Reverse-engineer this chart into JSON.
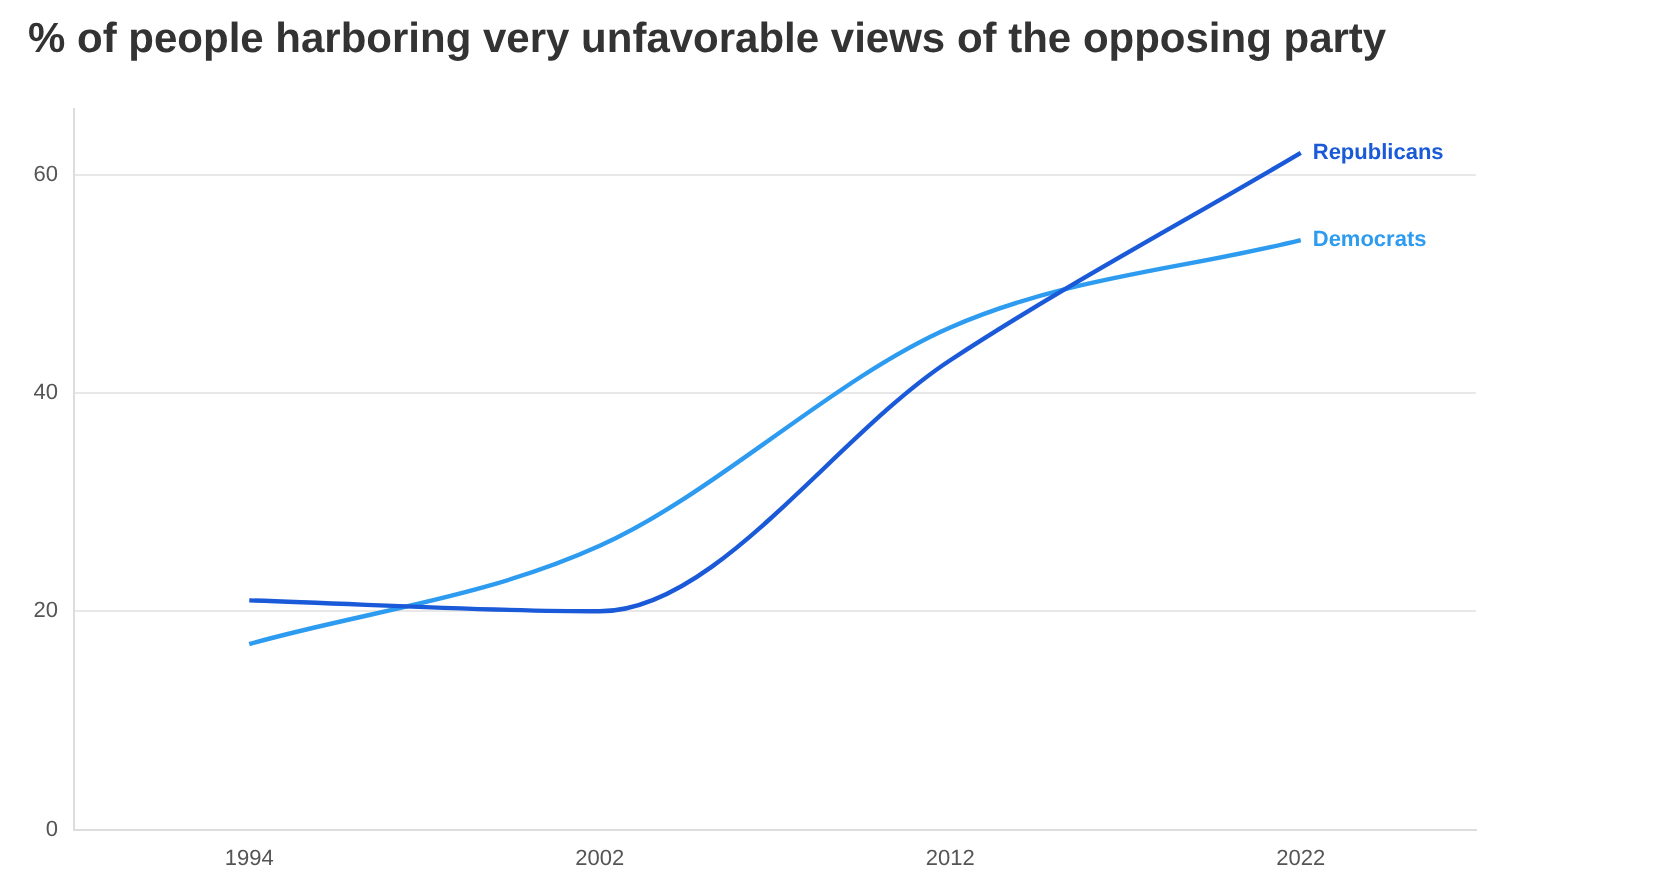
{
  "chart_data": {
    "type": "line",
    "title": "% of people harboring very unfavorable views of the opposing party",
    "categories": [
      "1994",
      "2002",
      "2012",
      "2022"
    ],
    "series": [
      {
        "name": "Republicans",
        "color": "#1a5ad8",
        "values": [
          21,
          20,
          43,
          62
        ]
      },
      {
        "name": "Democrats",
        "color": "#2d9bf0",
        "values": [
          17,
          26,
          46,
          54
        ]
      }
    ],
    "ylim": [
      0,
      66
    ],
    "yticks": [
      0,
      20,
      40,
      60
    ],
    "grid": "y",
    "legend": false,
    "marker": "none",
    "line_style": "solid"
  }
}
